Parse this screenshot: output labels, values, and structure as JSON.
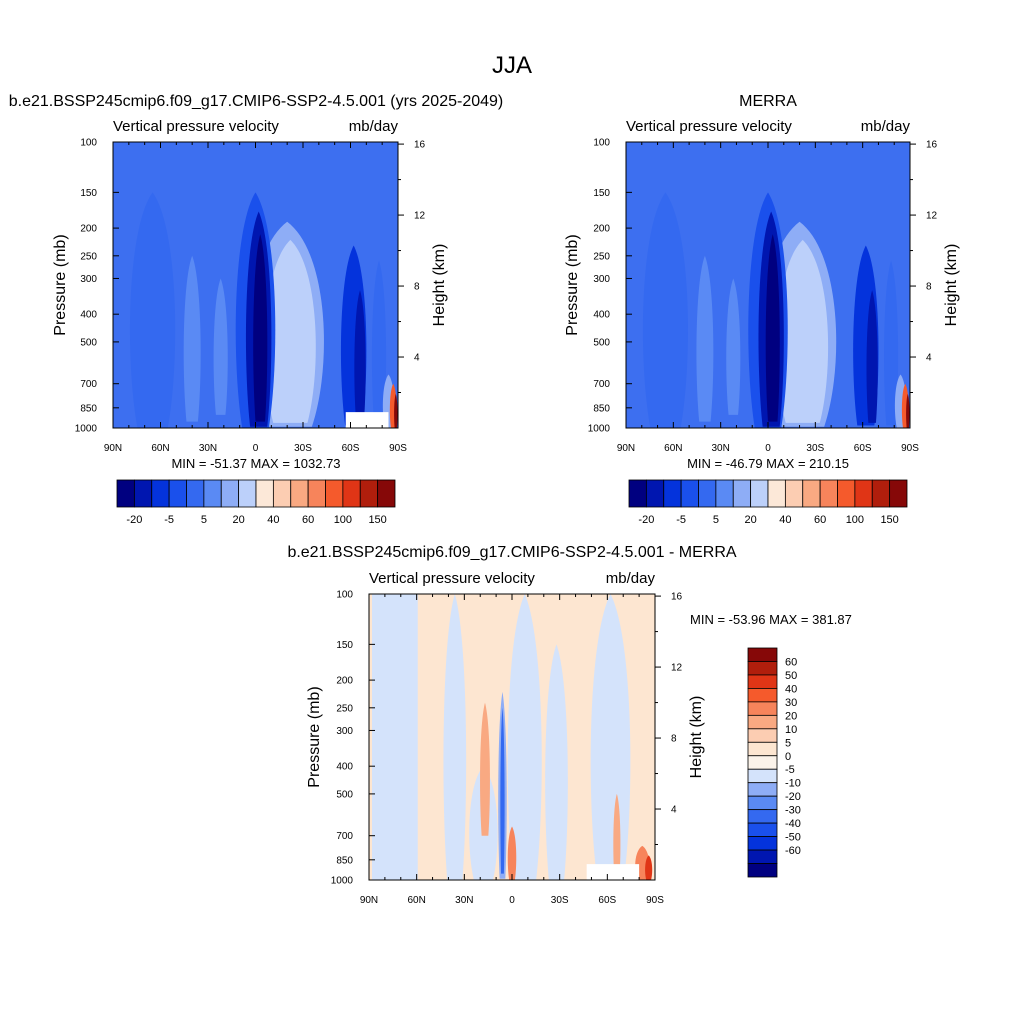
{
  "page_title": "JJA",
  "colors": {
    "abs_scale": [
      "#000080",
      "#0016b0",
      "#0433dc",
      "#1a50ec",
      "#3469f0",
      "#5a8af4",
      "#8eadf6",
      "#bcd0fa",
      "#fce8d8",
      "#fccdb2",
      "#f9a982",
      "#f7845b",
      "#f55a2c",
      "#e03516",
      "#b01e0c",
      "#860808"
    ],
    "diff_scale": [
      "#000080",
      "#0016b0",
      "#0433dc",
      "#1a50ec",
      "#3469f0",
      "#5a8af4",
      "#8eadf6",
      "#d4e3fb",
      "#fbf3ea",
      "#fde6d1",
      "#fccdb2",
      "#f9a982",
      "#f7845b",
      "#f55a2c",
      "#e03516",
      "#b01e0c",
      "#860808"
    ],
    "background_abs": "#3d6ff0",
    "background_diff_pos": "#fde6d1",
    "background_diff_neg": "#d4e3fb"
  },
  "chart_data": [
    {
      "type": "heatmap",
      "title": "b.e21.BSSP245cmip6.f09_g17.CMIP6-SSP2-4.5.001 (yrs 2025-2049)",
      "left_label": "Vertical pressure velocity",
      "right_label": "mb/day",
      "ylabel": "Pressure (mb)",
      "ylabel_right": "Height (km)",
      "x_ticks": [
        "90N",
        "60N",
        "30N",
        "0",
        "30S",
        "60S",
        "90S"
      ],
      "x_values": [
        90,
        60,
        30,
        0,
        -30,
        -60,
        -90
      ],
      "y_ticks": [
        "100",
        "150",
        "200",
        "250",
        "300",
        "400",
        "500",
        "700",
        "850",
        "1000"
      ],
      "y_values": [
        100,
        150,
        200,
        250,
        300,
        400,
        500,
        700,
        850,
        1000
      ],
      "height_ticks": [
        "16",
        "12",
        "8",
        "4"
      ],
      "height_values": [
        16,
        12,
        8,
        4
      ],
      "stats": "MIN = -51.37  MAX = 1032.73",
      "colorbar_labels": [
        "-20",
        "-5",
        "5",
        "20",
        "40",
        "60",
        "100",
        "150"
      ],
      "colorbar_orientation": "horizontal",
      "features": [
        {
          "lat": -2,
          "p_top": 170,
          "p_bot": 980,
          "width": 14,
          "value": "strong-ascent"
        },
        {
          "lat": -22,
          "p_top": 200,
          "p_bot": 940,
          "width": 22,
          "value": "descent"
        },
        {
          "lat": -64,
          "p_top": 260,
          "p_bot": 960,
          "width": 8,
          "value": "ascent"
        },
        {
          "lat": -88,
          "p_top": 700,
          "p_bot": 1000,
          "width": 3,
          "value": "positive-extreme"
        }
      ]
    },
    {
      "type": "heatmap",
      "title": "MERRA",
      "left_label": "Vertical pressure velocity",
      "right_label": "mb/day",
      "ylabel": "Pressure (mb)",
      "ylabel_right": "Height (km)",
      "x_ticks": [
        "90N",
        "60N",
        "30N",
        "0",
        "30S",
        "60S",
        "90S"
      ],
      "x_values": [
        90,
        60,
        30,
        0,
        -30,
        -60,
        -90
      ],
      "y_ticks": [
        "100",
        "150",
        "200",
        "250",
        "300",
        "400",
        "500",
        "700",
        "850",
        "1000"
      ],
      "y_values": [
        100,
        150,
        200,
        250,
        300,
        400,
        500,
        700,
        850,
        1000
      ],
      "height_ticks": [
        "16",
        "12",
        "8",
        "4"
      ],
      "height_values": [
        16,
        12,
        8,
        4
      ],
      "stats": "MIN = -46.79  MAX = 210.15",
      "colorbar_labels": [
        "-20",
        "-5",
        "5",
        "20",
        "40",
        "60",
        "100",
        "150"
      ],
      "colorbar_orientation": "horizontal"
    },
    {
      "type": "heatmap",
      "title": "b.e21.BSSP245cmip6.f09_g17.CMIP6-SSP2-4.5.001 - MERRA",
      "left_label": "Vertical pressure velocity",
      "right_label": "mb/day",
      "ylabel": "Pressure (mb)",
      "ylabel_right": "Height (km)",
      "x_ticks": [
        "90N",
        "60N",
        "30N",
        "0",
        "30S",
        "60S",
        "90S"
      ],
      "x_values": [
        90,
        60,
        30,
        0,
        -30,
        -60,
        -90
      ],
      "y_ticks": [
        "100",
        "150",
        "200",
        "250",
        "300",
        "400",
        "500",
        "700",
        "850",
        "1000"
      ],
      "y_values": [
        100,
        150,
        200,
        250,
        300,
        400,
        500,
        700,
        850,
        1000
      ],
      "height_ticks": [
        "16",
        "12",
        "8",
        "4"
      ],
      "height_values": [
        16,
        12,
        8,
        4
      ],
      "stats": "MIN = -53.96  MAX = 381.87",
      "colorbar_labels": [
        "60",
        "50",
        "40",
        "30",
        "20",
        "10",
        "5",
        "0",
        "-5",
        "-10",
        "-20",
        "-30",
        "-40",
        "-50",
        "-60"
      ],
      "colorbar_orientation": "vertical"
    }
  ]
}
